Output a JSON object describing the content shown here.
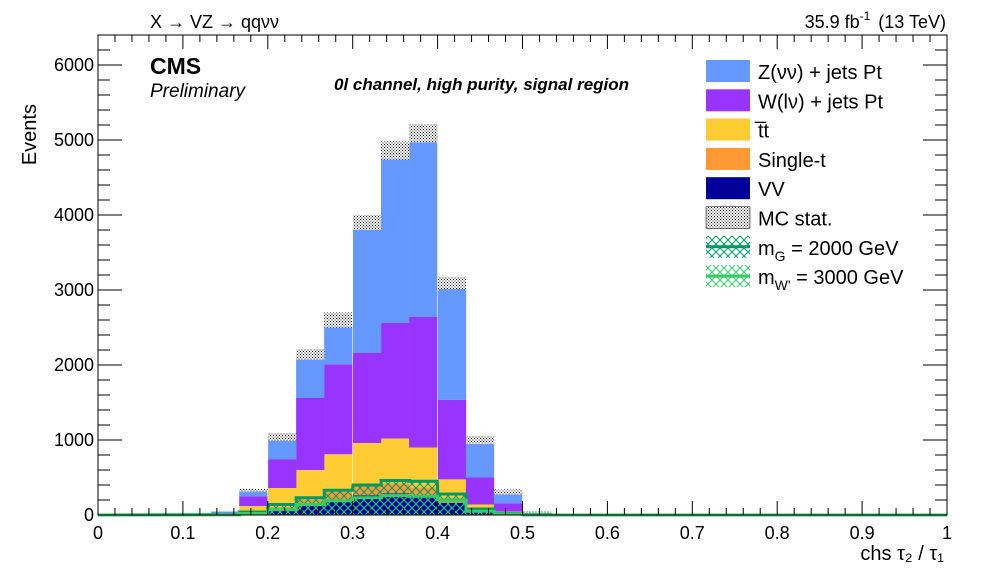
{
  "header": {
    "process": "X → VZ → qqνν",
    "lumi_value": "35.9 fb",
    "lumi_exp": "-1",
    "lumi_energy": "(13 TeV)"
  },
  "labels": {
    "cms": "CMS",
    "preliminary": "Preliminary",
    "channel": "0l channel, high purity, signal region"
  },
  "chart_data": {
    "type": "bar",
    "stacked": true,
    "xlabel": "chs τ₂ / τ₁",
    "ylabel": "Events",
    "xlim": [
      0,
      1
    ],
    "ylim": [
      0,
      6400
    ],
    "bin_width": 0.0333,
    "x": [
      0.15,
      0.183,
      0.217,
      0.25,
      0.283,
      0.317,
      0.35,
      0.383,
      0.417,
      0.45,
      0.483,
      0.517
    ],
    "xticks": [
      "0",
      "0.1",
      "0.2",
      "0.3",
      "0.4",
      "0.5",
      "0.6",
      "0.7",
      "0.8",
      "0.9",
      "1"
    ],
    "yticks": [
      "0",
      "1000",
      "2000",
      "3000",
      "4000",
      "5000",
      "6000"
    ],
    "series": [
      {
        "name": "VV",
        "color": "#000099",
        "values": [
          2,
          30,
          70,
          130,
          200,
          260,
          290,
          260,
          160,
          50,
          15,
          2
        ]
      },
      {
        "name": "Single-t",
        "color": "#ff9933",
        "values": [
          2,
          15,
          40,
          80,
          110,
          130,
          130,
          110,
          70,
          30,
          10,
          1
        ]
      },
      {
        "name": "t̅t",
        "color": "#ffcc33",
        "values": [
          8,
          75,
          250,
          390,
          500,
          570,
          600,
          530,
          245,
          60,
          20,
          3
        ]
      },
      {
        "name": "W(lν) + jets Pt",
        "color": "#9933ff",
        "values": [
          20,
          130,
          380,
          960,
          1200,
          1200,
          1540,
          1740,
          1060,
          360,
          110,
          14
        ]
      },
      {
        "name": "Z(νν) + jets Pt",
        "color": "#6699ff",
        "values": [
          18,
          80,
          300,
          580,
          590,
          1740,
          2300,
          2450,
          1560,
          500,
          150,
          20
        ]
      }
    ],
    "mc_stat": {
      "name": "MC stat.",
      "uncertainty": [
        5,
        20,
        50,
        70,
        100,
        100,
        120,
        120,
        80,
        55,
        35,
        12
      ]
    },
    "signals": [
      {
        "name": "m_G = 2000 GeV",
        "label_main": "m",
        "label_sub": "G",
        "label_rest": " = 2000 GeV",
        "color": "#009966",
        "values": [
          5,
          40,
          140,
          230,
          330,
          400,
          460,
          450,
          280,
          80,
          20,
          3
        ]
      },
      {
        "name": "m_W' = 3000 GeV",
        "label_main": "m",
        "label_sub": "W'",
        "label_rest": " = 3000 GeV",
        "color": "#33cc66",
        "values": [
          3,
          20,
          70,
          140,
          190,
          230,
          260,
          250,
          200,
          50,
          15,
          2
        ]
      }
    ],
    "legend_position": "top-right"
  }
}
